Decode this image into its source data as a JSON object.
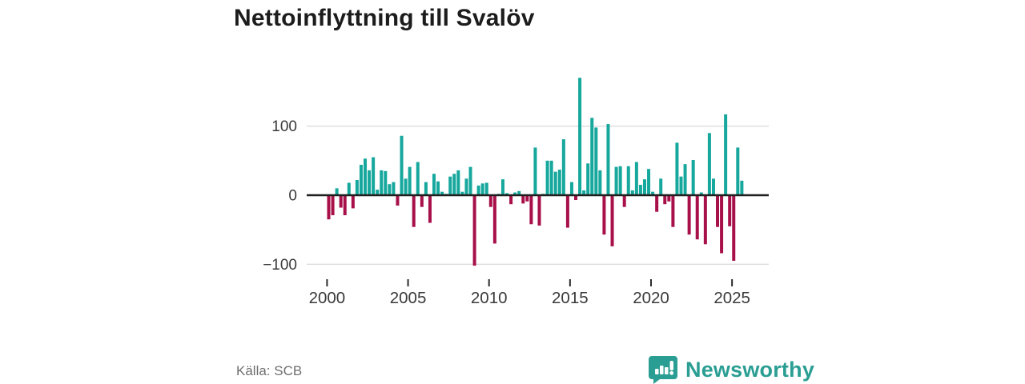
{
  "header": {
    "title": "Nettoinflyttning till Svalöv"
  },
  "footer": {
    "source_label": "Källa: SCB",
    "brand": {
      "name": "Newsworthy",
      "icon": "newsworthy-speech-bubble-bar-chart-icon",
      "color": "#2b9e93"
    }
  },
  "chart_data": {
    "type": "bar",
    "title": "Nettoinflyttning till Svalöv",
    "frequency": "quarterly",
    "start_year": 2000,
    "start_quarter": 1,
    "x_tick_labels": [
      "2000",
      "2005",
      "2010",
      "2015",
      "2020",
      "2025"
    ],
    "y_ticks": [
      100,
      0,
      -100
    ],
    "y_tick_labels": [
      "100",
      "0",
      "−100"
    ],
    "ylim": [
      -110,
      175
    ],
    "grid": "horizontal",
    "legend": "none",
    "colors": {
      "positive": "#16a79d",
      "negative": "#a8104a",
      "zero_line": "#1f1f1f",
      "gridline": "#dcdcdc",
      "tick": "#2b2b2b",
      "tick_label": "#3a3a3a"
    },
    "values": [
      -35,
      -29,
      10,
      -18,
      -29,
      18,
      -19,
      22,
      44,
      53,
      36,
      55,
      8,
      36,
      35,
      16,
      19,
      -15,
      86,
      24,
      41,
      -46,
      48,
      -17,
      19,
      -40,
      31,
      20,
      5,
      2,
      27,
      31,
      36,
      5,
      24,
      41,
      -102,
      14,
      17,
      18,
      -17,
      -70,
      2,
      23,
      3,
      -13,
      4,
      6,
      -12,
      -9,
      -42,
      69,
      -44,
      2,
      50,
      50,
      34,
      37,
      81,
      -47,
      19,
      -7,
      170,
      7,
      46,
      112,
      98,
      36,
      -57,
      103,
      -74,
      41,
      42,
      -17,
      42,
      7,
      48,
      15,
      23,
      38,
      5,
      -24,
      24,
      -13,
      -9,
      -46,
      76,
      27,
      45,
      -57,
      51,
      -64,
      4,
      -71,
      90,
      24,
      -46,
      -84,
      117,
      -45,
      -95,
      69,
      21
    ]
  }
}
